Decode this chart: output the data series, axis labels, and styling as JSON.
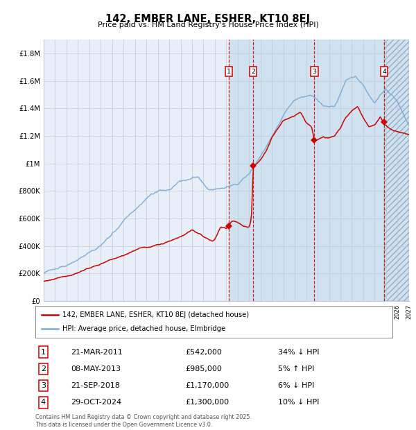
{
  "title": "142, EMBER LANE, ESHER, KT10 8EJ",
  "subtitle": "Price paid vs. HM Land Registry's House Price Index (HPI)",
  "legend_line1": "142, EMBER LANE, ESHER, KT10 8EJ (detached house)",
  "legend_line2": "HPI: Average price, detached house, Elmbridge",
  "transactions": [
    {
      "num": 1,
      "date": "21-MAR-2011",
      "price": 542000,
      "rel": "34% ↓ HPI",
      "date_x": 2011.22
    },
    {
      "num": 2,
      "date": "08-MAY-2013",
      "price": 985000,
      "rel": "5% ↑ HPI",
      "date_x": 2013.36
    },
    {
      "num": 3,
      "date": "21-SEP-2018",
      "price": 1170000,
      "rel": "6% ↓ HPI",
      "date_x": 2018.72
    },
    {
      "num": 4,
      "date": "29-OCT-2024",
      "price": 1300000,
      "rel": "10% ↓ HPI",
      "date_x": 2024.83
    }
  ],
  "ytick_values": [
    0,
    200000,
    400000,
    600000,
    800000,
    1000000,
    1200000,
    1400000,
    1600000,
    1800000
  ],
  "ytick_labels": [
    "£0",
    "£200K",
    "£400K",
    "£600K",
    "£800K",
    "£1M",
    "£1.2M",
    "£1.4M",
    "£1.6M",
    "£1.8M"
  ],
  "xmin": 1995,
  "xmax": 2027,
  "ymin": 0,
  "ymax": 1900000,
  "red_color": "#cc0000",
  "blue_color": "#7baad4",
  "chart_bg": "#e8eff8",
  "shade_color": "#d0e2f0",
  "grid_color": "#c0c8d8",
  "price_strs": [
    "£542,000",
    "£985,000",
    "£1,170,000",
    "£1,300,000"
  ],
  "footer": "Contains HM Land Registry data © Crown copyright and database right 2025.\nThis data is licensed under the Open Government Licence v3.0."
}
